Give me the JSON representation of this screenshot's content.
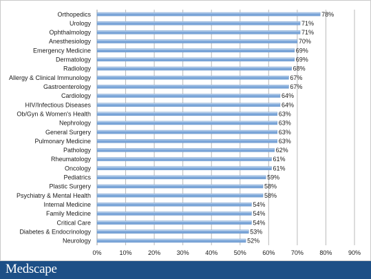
{
  "brand": {
    "name": "Medscape"
  },
  "chart_data": {
    "type": "bar",
    "orientation": "horizontal",
    "categories": [
      "Orthopedics",
      "Urology",
      "Ophthalmology",
      "Anesthesiology",
      "Emergency Medicine",
      "Dermatology",
      "Radiology",
      "Allergy & Clinical Immunology",
      "Gastroenterology",
      "Cardiology",
      "HIV/Infectious Diseases",
      "Ob/Gyn & Women's Health",
      "Nephrology",
      "General Surgery",
      "Pulmonary Medicine",
      "Pathology",
      "Rheumatology",
      "Oncology",
      "Pediatrics",
      "Plastic Surgery",
      "Psychiatry & Mental Health",
      "Internal Medicine",
      "Family Medicine",
      "Critical Care",
      "Diabetes & Endocrinology",
      "Neurology"
    ],
    "values": [
      78,
      71,
      71,
      70,
      69,
      69,
      68,
      67,
      67,
      64,
      64,
      63,
      63,
      63,
      63,
      62,
      61,
      61,
      59,
      58,
      58,
      54,
      54,
      54,
      53,
      52
    ],
    "value_labels": [
      "78%",
      "71%",
      "71%",
      "70%",
      "69%",
      "69%",
      "68%",
      "67%",
      "67%",
      "64%",
      "64%",
      "63%",
      "63%",
      "63%",
      "63%",
      "62%",
      "61%",
      "61%",
      "59%",
      "58%",
      "58%",
      "54%",
      "54%",
      "54%",
      "53%",
      "52%"
    ],
    "xlim": [
      0,
      90
    ],
    "xticks": [
      "0%",
      "10%",
      "20%",
      "30%",
      "40%",
      "50%",
      "60%",
      "70%",
      "80%",
      "90%"
    ],
    "grid": "vertical",
    "bar_color": "#7aa5d8",
    "bar_highlight": "#dbe8f7",
    "title": "",
    "xlabel": "",
    "ylabel": ""
  }
}
